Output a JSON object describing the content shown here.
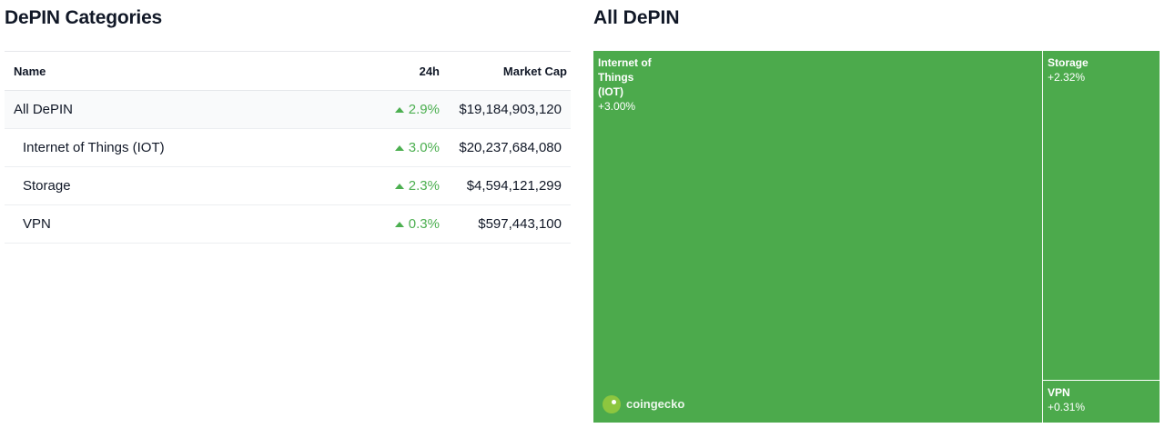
{
  "categories": {
    "title": "DePIN Categories",
    "columns": {
      "name": "Name",
      "change_24h": "24h",
      "market_cap": "Market Cap"
    },
    "rows": [
      {
        "name": "All DePIN",
        "change_24h": "2.9%",
        "market_cap": "$19,184,903,120",
        "direction": "up"
      },
      {
        "name": "Internet of Things (IOT)",
        "change_24h": "3.0%",
        "market_cap": "$20,237,684,080",
        "direction": "up"
      },
      {
        "name": "Storage",
        "change_24h": "2.3%",
        "market_cap": "$4,594,121,299",
        "direction": "up"
      },
      {
        "name": "VPN",
        "change_24h": "0.3%",
        "market_cap": "$597,443,100",
        "direction": "up"
      }
    ]
  },
  "treemap": {
    "title": "All DePIN",
    "tiles": [
      {
        "name": "Internet of Things (IOT)",
        "change": "+3.00%"
      },
      {
        "name": "Storage",
        "change": "+2.32%"
      },
      {
        "name": "VPN",
        "change": "+0.31%"
      }
    ],
    "logo_text": "coingecko",
    "tile_color": "#4caa4c",
    "up_color": "#4caf50"
  }
}
